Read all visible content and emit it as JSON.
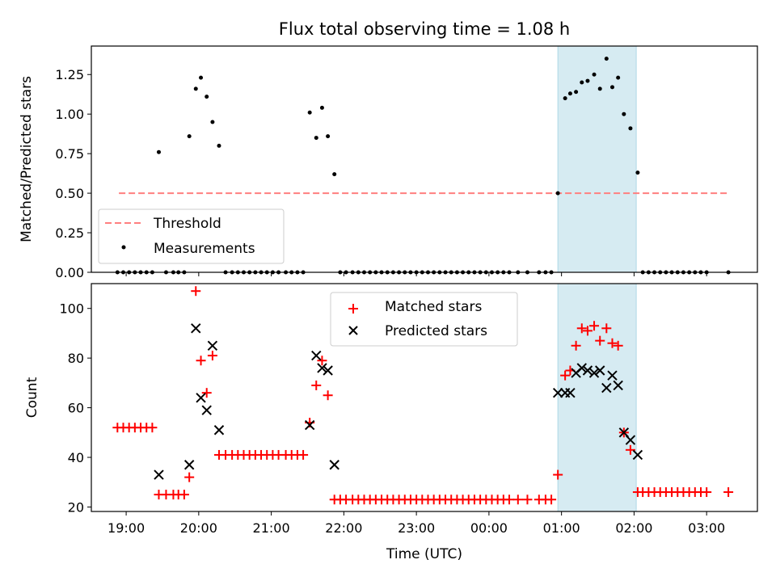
{
  "chart_data": [
    {
      "type": "scatter",
      "title": "Flux total observing time = 1.08 h",
      "xlabel": "",
      "ylabel": "Matched/Predicted stars",
      "xlim_hours": [
        18.52,
        27.7
      ],
      "ylim": [
        0,
        1.43
      ],
      "yticks": [
        "0.00",
        "0.25",
        "0.50",
        "0.75",
        "1.00",
        "1.25"
      ],
      "threshold": {
        "name": "Threshold",
        "value": 0.5,
        "x_start": 18.9,
        "x_end": 27.3,
        "color": "#ff7f7f"
      },
      "shaded_region": {
        "x_start": 24.95,
        "x_end": 26.03,
        "color": "#add8e6"
      },
      "legend": {
        "position": "lower-left",
        "entries": [
          "Threshold",
          "Measurements"
        ]
      },
      "series": [
        {
          "name": "Measurements",
          "color": "#000000",
          "points": [
            [
              18.88,
              0
            ],
            [
              18.96,
              0
            ],
            [
              19.04,
              0
            ],
            [
              19.12,
              0
            ],
            [
              19.2,
              0
            ],
            [
              19.28,
              0
            ],
            [
              19.36,
              0
            ],
            [
              19.45,
              0.76
            ],
            [
              19.55,
              0
            ],
            [
              19.65,
              0
            ],
            [
              19.72,
              0
            ],
            [
              19.8,
              0
            ],
            [
              19.87,
              0.86
            ],
            [
              19.96,
              1.16
            ],
            [
              20.03,
              1.23
            ],
            [
              20.11,
              1.11
            ],
            [
              20.19,
              0.95
            ],
            [
              20.28,
              0.8
            ],
            [
              20.37,
              0
            ],
            [
              20.46,
              0
            ],
            [
              20.54,
              0
            ],
            [
              20.62,
              0
            ],
            [
              20.7,
              0
            ],
            [
              20.78,
              0
            ],
            [
              20.86,
              0
            ],
            [
              20.94,
              0
            ],
            [
              21.02,
              0
            ],
            [
              21.1,
              0
            ],
            [
              21.2,
              0
            ],
            [
              21.28,
              0
            ],
            [
              21.36,
              0
            ],
            [
              21.44,
              0
            ],
            [
              21.53,
              1.01
            ],
            [
              21.62,
              0.85
            ],
            [
              21.7,
              1.04
            ],
            [
              21.78,
              0.86
            ],
            [
              21.87,
              0.62
            ],
            [
              21.95,
              0
            ],
            [
              22.03,
              0
            ],
            [
              22.12,
              0
            ],
            [
              22.2,
              0
            ],
            [
              22.28,
              0
            ],
            [
              22.36,
              0
            ],
            [
              22.44,
              0
            ],
            [
              22.52,
              0
            ],
            [
              22.6,
              0
            ],
            [
              22.68,
              0
            ],
            [
              22.76,
              0
            ],
            [
              22.84,
              0
            ],
            [
              22.92,
              0
            ],
            [
              23.0,
              0
            ],
            [
              23.08,
              0
            ],
            [
              23.16,
              0
            ],
            [
              23.24,
              0
            ],
            [
              23.32,
              0
            ],
            [
              23.4,
              0
            ],
            [
              23.48,
              0
            ],
            [
              23.56,
              0
            ],
            [
              23.64,
              0
            ],
            [
              23.72,
              0
            ],
            [
              23.8,
              0
            ],
            [
              23.88,
              0
            ],
            [
              23.96,
              0
            ],
            [
              24.04,
              0
            ],
            [
              24.12,
              0
            ],
            [
              24.2,
              0
            ],
            [
              24.28,
              0
            ],
            [
              24.4,
              0
            ],
            [
              24.53,
              0
            ],
            [
              24.69,
              0
            ],
            [
              24.78,
              0
            ],
            [
              24.86,
              0
            ],
            [
              24.95,
              0.5
            ],
            [
              25.05,
              1.1
            ],
            [
              25.12,
              1.13
            ],
            [
              25.2,
              1.14
            ],
            [
              25.28,
              1.2
            ],
            [
              25.36,
              1.21
            ],
            [
              25.45,
              1.25
            ],
            [
              25.53,
              1.16
            ],
            [
              25.62,
              1.35
            ],
            [
              25.7,
              1.17
            ],
            [
              25.78,
              1.23
            ],
            [
              25.86,
              1.0
            ],
            [
              25.95,
              0.91
            ],
            [
              26.05,
              0.63
            ],
            [
              26.12,
              0
            ],
            [
              26.2,
              0
            ],
            [
              26.28,
              0
            ],
            [
              26.36,
              0
            ],
            [
              26.44,
              0
            ],
            [
              26.52,
              0
            ],
            [
              26.6,
              0
            ],
            [
              26.68,
              0
            ],
            [
              26.76,
              0
            ],
            [
              26.84,
              0
            ],
            [
              26.92,
              0
            ],
            [
              27.0,
              0
            ],
            [
              27.3,
              0
            ]
          ]
        }
      ]
    },
    {
      "type": "scatter",
      "title": "",
      "xlabel": "Time (UTC)",
      "ylabel": "Count",
      "xlim_hours": [
        18.52,
        27.7
      ],
      "ylim": [
        18.2,
        110
      ],
      "yticks": [
        20,
        40,
        60,
        80,
        100
      ],
      "xtick_hours": [
        19,
        20,
        21,
        22,
        23,
        24,
        25,
        26,
        27
      ],
      "xtick_labels": [
        "19:00",
        "20:00",
        "21:00",
        "22:00",
        "23:00",
        "00:00",
        "01:00",
        "02:00",
        "03:00"
      ],
      "shaded_region": {
        "x_start": 24.95,
        "x_end": 26.03,
        "color": "#add8e6"
      },
      "legend": {
        "position": "upper-center",
        "entries": [
          "Matched stars",
          "Predicted stars"
        ]
      },
      "series": [
        {
          "name": "Matched stars",
          "marker": "plus",
          "color": "#ff0000",
          "points": [
            [
              18.88,
              52
            ],
            [
              18.96,
              52
            ],
            [
              19.04,
              52
            ],
            [
              19.12,
              52
            ],
            [
              19.2,
              52
            ],
            [
              19.28,
              52
            ],
            [
              19.36,
              52
            ],
            [
              19.45,
              25
            ],
            [
              19.55,
              25
            ],
            [
              19.65,
              25
            ],
            [
              19.72,
              25
            ],
            [
              19.8,
              25
            ],
            [
              19.87,
              32
            ],
            [
              19.96,
              107
            ],
            [
              20.03,
              79
            ],
            [
              20.11,
              66
            ],
            [
              20.19,
              81
            ],
            [
              20.28,
              41
            ],
            [
              20.37,
              41
            ],
            [
              20.46,
              41
            ],
            [
              20.54,
              41
            ],
            [
              20.62,
              41
            ],
            [
              20.7,
              41
            ],
            [
              20.78,
              41
            ],
            [
              20.86,
              41
            ],
            [
              20.94,
              41
            ],
            [
              21.02,
              41
            ],
            [
              21.1,
              41
            ],
            [
              21.2,
              41
            ],
            [
              21.28,
              41
            ],
            [
              21.36,
              41
            ],
            [
              21.44,
              41
            ],
            [
              21.53,
              54
            ],
            [
              21.62,
              69
            ],
            [
              21.7,
              79
            ],
            [
              21.78,
              65
            ],
            [
              21.87,
              23
            ],
            [
              21.95,
              23
            ],
            [
              22.03,
              23
            ],
            [
              22.12,
              23
            ],
            [
              22.2,
              23
            ],
            [
              22.28,
              23
            ],
            [
              22.36,
              23
            ],
            [
              22.44,
              23
            ],
            [
              22.52,
              23
            ],
            [
              22.6,
              23
            ],
            [
              22.68,
              23
            ],
            [
              22.76,
              23
            ],
            [
              22.84,
              23
            ],
            [
              22.92,
              23
            ],
            [
              23.0,
              23
            ],
            [
              23.08,
              23
            ],
            [
              23.16,
              23
            ],
            [
              23.24,
              23
            ],
            [
              23.32,
              23
            ],
            [
              23.4,
              23
            ],
            [
              23.48,
              23
            ],
            [
              23.56,
              23
            ],
            [
              23.64,
              23
            ],
            [
              23.72,
              23
            ],
            [
              23.8,
              23
            ],
            [
              23.88,
              23
            ],
            [
              23.96,
              23
            ],
            [
              24.04,
              23
            ],
            [
              24.12,
              23
            ],
            [
              24.2,
              23
            ],
            [
              24.28,
              23
            ],
            [
              24.4,
              23
            ],
            [
              24.53,
              23
            ],
            [
              24.69,
              23
            ],
            [
              24.78,
              23
            ],
            [
              24.86,
              23
            ],
            [
              24.95,
              33
            ],
            [
              25.05,
              73
            ],
            [
              25.12,
              75
            ],
            [
              25.2,
              85
            ],
            [
              25.28,
              92
            ],
            [
              25.36,
              91
            ],
            [
              25.45,
              93
            ],
            [
              25.53,
              87
            ],
            [
              25.62,
              92
            ],
            [
              25.7,
              86
            ],
            [
              25.78,
              85
            ],
            [
              25.86,
              50
            ],
            [
              25.95,
              43
            ],
            [
              26.05,
              26
            ],
            [
              26.12,
              26
            ],
            [
              26.2,
              26
            ],
            [
              26.28,
              26
            ],
            [
              26.36,
              26
            ],
            [
              26.44,
              26
            ],
            [
              26.52,
              26
            ],
            [
              26.6,
              26
            ],
            [
              26.68,
              26
            ],
            [
              26.76,
              26
            ],
            [
              26.84,
              26
            ],
            [
              26.92,
              26
            ],
            [
              27.0,
              26
            ],
            [
              27.3,
              26
            ]
          ]
        },
        {
          "name": "Predicted stars",
          "marker": "x",
          "color": "#000000",
          "points": [
            [
              19.45,
              33
            ],
            [
              19.87,
              37
            ],
            [
              19.96,
              92
            ],
            [
              20.03,
              64
            ],
            [
              20.11,
              59
            ],
            [
              20.19,
              85
            ],
            [
              20.28,
              51
            ],
            [
              21.53,
              53
            ],
            [
              21.62,
              81
            ],
            [
              21.7,
              76
            ],
            [
              21.78,
              75
            ],
            [
              21.87,
              37
            ],
            [
              24.95,
              66
            ],
            [
              25.05,
              66
            ],
            [
              25.12,
              66
            ],
            [
              25.2,
              74
            ],
            [
              25.28,
              76
            ],
            [
              25.36,
              75
            ],
            [
              25.45,
              74
            ],
            [
              25.53,
              75
            ],
            [
              25.62,
              68
            ],
            [
              25.7,
              73
            ],
            [
              25.78,
              69
            ],
            [
              25.86,
              50
            ],
            [
              25.95,
              47
            ],
            [
              26.05,
              41
            ]
          ]
        }
      ]
    }
  ]
}
